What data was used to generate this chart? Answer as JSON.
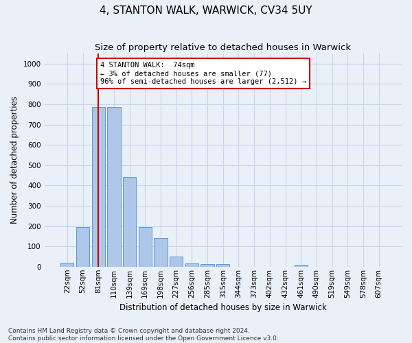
{
  "title": "4, STANTON WALK, WARWICK, CV34 5UY",
  "subtitle": "Size of property relative to detached houses in Warwick",
  "xlabel": "Distribution of detached houses by size in Warwick",
  "ylabel": "Number of detached properties",
  "categories": [
    "22sqm",
    "52sqm",
    "81sqm",
    "110sqm",
    "139sqm",
    "169sqm",
    "198sqm",
    "227sqm",
    "256sqm",
    "285sqm",
    "315sqm",
    "344sqm",
    "373sqm",
    "402sqm",
    "432sqm",
    "461sqm",
    "490sqm",
    "519sqm",
    "549sqm",
    "578sqm",
    "607sqm"
  ],
  "values": [
    20,
    195,
    785,
    785,
    443,
    195,
    140,
    50,
    15,
    13,
    13,
    0,
    0,
    0,
    0,
    10,
    0,
    0,
    0,
    0,
    0
  ],
  "bar_color": "#aec6e8",
  "bar_edgecolor": "#5b9bd5",
  "vline_x_index": 2,
  "annotation_text": "4 STANTON WALK:  74sqm\n← 3% of detached houses are smaller (77)\n96% of semi-detached houses are larger (2,512) →",
  "annotation_box_color": "#ffffff",
  "annotation_box_edgecolor": "#cc0000",
  "vline_color": "#cc0000",
  "grid_color": "#c8d4e8",
  "background_color": "#eaf0f8",
  "ylim": [
    0,
    1050
  ],
  "yticks": [
    0,
    100,
    200,
    300,
    400,
    500,
    600,
    700,
    800,
    900,
    1000
  ],
  "footnote": "Contains HM Land Registry data © Crown copyright and database right 2024.\nContains public sector information licensed under the Open Government Licence v3.0.",
  "title_fontsize": 11,
  "subtitle_fontsize": 9.5,
  "axis_label_fontsize": 8.5,
  "tick_fontsize": 7.5,
  "annotation_fontsize": 7.5,
  "footnote_fontsize": 6.5
}
